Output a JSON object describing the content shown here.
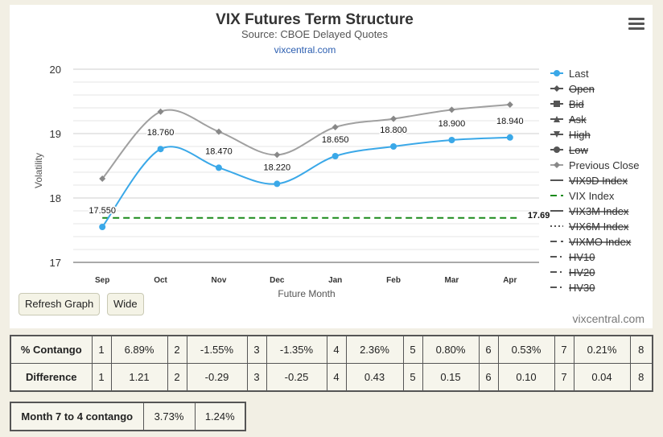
{
  "chart_data": {
    "type": "line",
    "title": "VIX Futures Term Structure",
    "subtitle": "Source: CBOE Delayed Quotes",
    "credit_link": "vixcentral.com",
    "watermark": "vixcentral.com",
    "xlabel": "Future Month",
    "ylabel": "Volatility",
    "categories": [
      "Sep",
      "Oct",
      "Nov",
      "Dec",
      "Jan",
      "Feb",
      "Mar",
      "Apr"
    ],
    "ylim": [
      17,
      20
    ],
    "yticks": [
      17,
      18,
      19,
      20
    ],
    "grid": true,
    "legend_position": "right",
    "series": [
      {
        "name": "Last",
        "values": [
          17.55,
          18.76,
          18.47,
          18.22,
          18.65,
          18.8,
          18.9,
          18.94
        ],
        "labels": [
          "17.550",
          "18.760",
          "18.470",
          "18.220",
          "18.650",
          "18.800",
          "18.900",
          "18.940"
        ],
        "color": "#3aa8e8",
        "visible": true
      },
      {
        "name": "Previous Close",
        "values": [
          18.3,
          19.34,
          19.03,
          18.67,
          19.1,
          19.23,
          19.37,
          19.45
        ],
        "color": "#a0a0a0",
        "visible": true
      },
      {
        "name": "VIX Index",
        "value": 17.69,
        "label": "17.69",
        "color": "#1a8a1a",
        "visible": true
      }
    ],
    "legend": [
      {
        "name": "Last",
        "symbol": "circle-line",
        "visible": true
      },
      {
        "name": "Open",
        "symbol": "diamond-line",
        "visible": false
      },
      {
        "name": "Bid",
        "symbol": "square-line",
        "visible": false
      },
      {
        "name": "Ask",
        "symbol": "triangle-line",
        "visible": false
      },
      {
        "name": "High",
        "symbol": "triangle-down-line",
        "visible": false
      },
      {
        "name": "Low",
        "symbol": "circle-line",
        "visible": false
      },
      {
        "name": "Previous Close",
        "symbol": "diamond-line",
        "visible": true
      },
      {
        "name": "VIX9D Index",
        "symbol": "line",
        "visible": false
      },
      {
        "name": "VIX Index",
        "symbol": "dashed-line",
        "visible": true
      },
      {
        "name": "VIX3M Index",
        "symbol": "line",
        "visible": false
      },
      {
        "name": "VIX6M Index",
        "symbol": "dotted-line",
        "visible": false
      },
      {
        "name": "VIXMO Index",
        "symbol": "dashed-line",
        "visible": false
      },
      {
        "name": "HV10",
        "symbol": "dashdot-line",
        "visible": false
      },
      {
        "name": "HV20",
        "symbol": "dashdot-line",
        "visible": false
      },
      {
        "name": "HV30",
        "symbol": "dashdot-line",
        "visible": false
      }
    ]
  },
  "buttons": {
    "refresh": "Refresh Graph",
    "wide": "Wide"
  },
  "contango_table": {
    "rows": [
      {
        "label": "% Contango",
        "cells": [
          "1",
          "6.89%",
          "2",
          "-1.55%",
          "3",
          "-1.35%",
          "4",
          "2.36%",
          "5",
          "0.80%",
          "6",
          "0.53%",
          "7",
          "0.21%",
          "8"
        ]
      },
      {
        "label": "Difference",
        "cells": [
          "1",
          "1.21",
          "2",
          "-0.29",
          "3",
          "-0.25",
          "4",
          "0.43",
          "5",
          "0.15",
          "6",
          "0.10",
          "7",
          "0.04",
          "8"
        ]
      }
    ]
  },
  "summary_table": {
    "label": "Month 7 to 4 contango",
    "values": [
      "3.73%",
      "1.24%"
    ]
  },
  "colors": {
    "background": "#f2efe4",
    "last": "#3aa8e8",
    "previous_close": "#a0a0a0",
    "vix_index": "#1a8a1a"
  },
  "icons": {
    "menu": "hamburger-menu-icon"
  }
}
